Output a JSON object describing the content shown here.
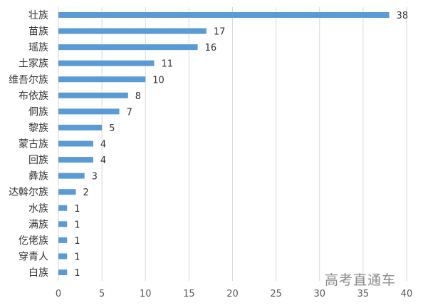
{
  "chart_data": {
    "type": "bar",
    "orientation": "horizontal",
    "categories": [
      "壮族",
      "苗族",
      "瑶族",
      "土家族",
      "维吾尔族",
      "布依族",
      "侗族",
      "黎族",
      "蒙古族",
      "回族",
      "彝族",
      "达斡尔族",
      "水族",
      "满族",
      "仡佬族",
      "穿青人",
      "白族"
    ],
    "values": [
      38,
      17,
      16,
      11,
      10,
      8,
      7,
      5,
      4,
      4,
      3,
      2,
      1,
      1,
      1,
      1,
      1
    ],
    "xlim": [
      0,
      40
    ],
    "xticks": [
      0,
      5,
      10,
      15,
      20,
      25,
      30,
      35,
      40
    ],
    "grid": "vertical",
    "legend": "none",
    "bar_color": "#5b9bd5",
    "data_labels": true
  },
  "watermark": "高考直通车"
}
